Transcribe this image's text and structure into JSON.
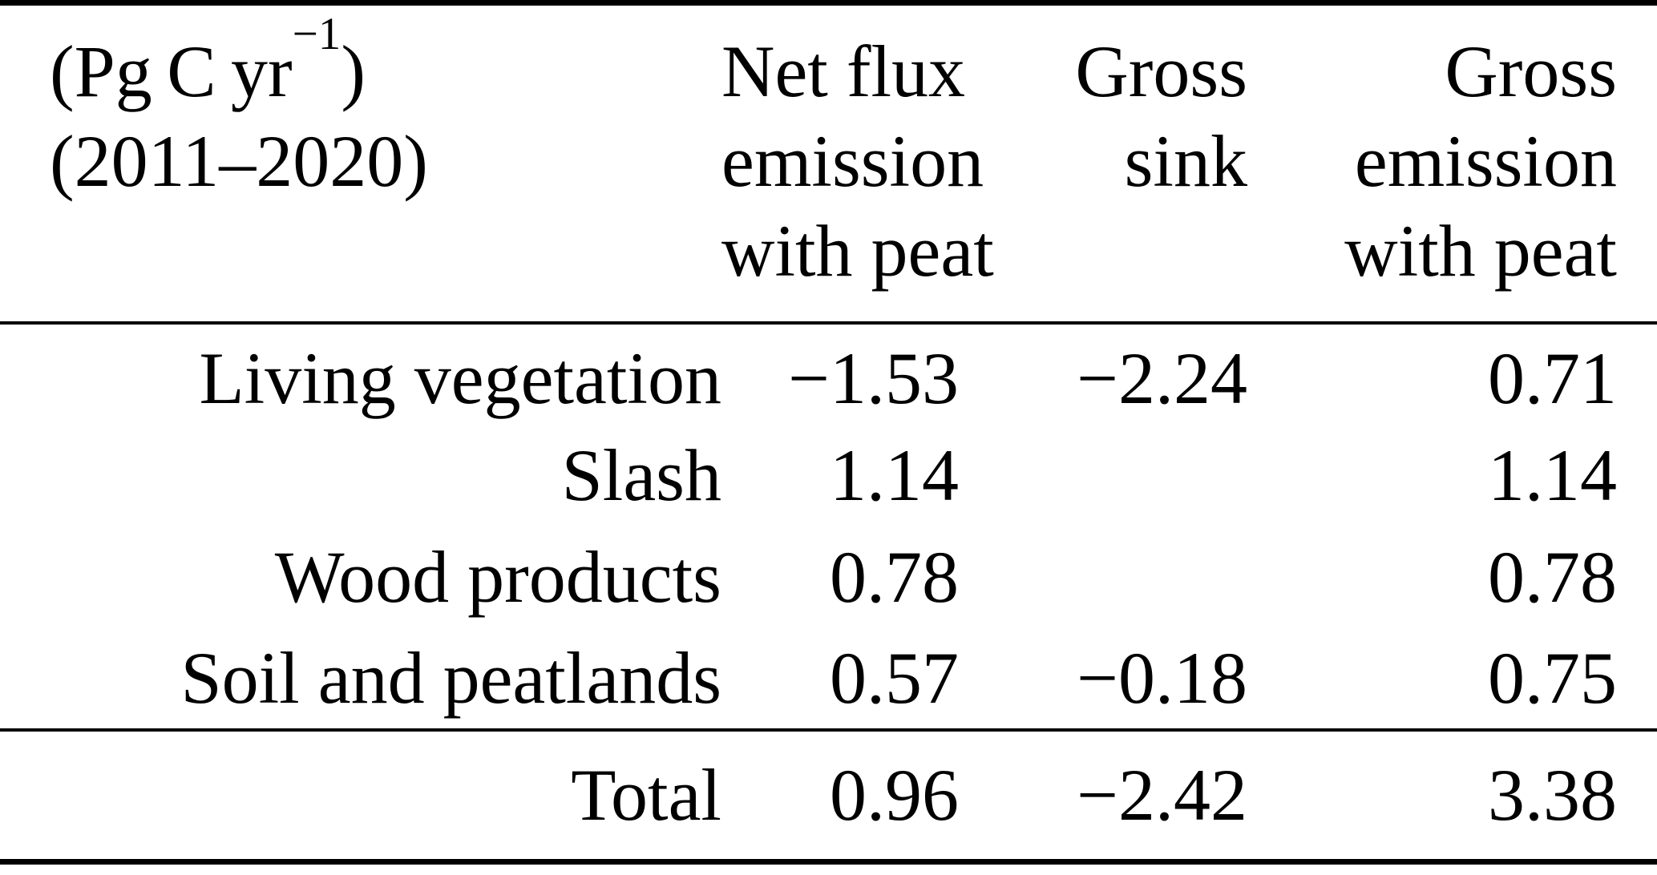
{
  "table": {
    "unit": {
      "prefix": "(Pg C yr",
      "sup": "−1",
      "suffix": ")"
    },
    "period": "(2011–2020)",
    "columns": {
      "net": [
        "Net flux",
        "emission",
        "with peat"
      ],
      "sink": [
        "Gross",
        "sink",
        ""
      ],
      "gross": [
        "Gross",
        "emission",
        "with peat"
      ]
    },
    "rows": [
      {
        "label": "Living vegetation",
        "net": "−1.53",
        "sink": "−2.24",
        "gross": "0.71"
      },
      {
        "label": "Slash",
        "net": "1.14",
        "sink": "",
        "gross": "1.14"
      },
      {
        "label": "Wood products",
        "net": "0.78",
        "sink": "",
        "gross": "0.78"
      },
      {
        "label": "Soil and peatlands",
        "net": "0.57",
        "sink": "−0.18",
        "gross": "0.75"
      }
    ],
    "total": {
      "label": "Total",
      "net": "0.96",
      "sink": "−2.42",
      "gross": "3.38"
    },
    "colors": {
      "text": "#000000",
      "background": "#ffffff",
      "rule": "#000000"
    }
  }
}
